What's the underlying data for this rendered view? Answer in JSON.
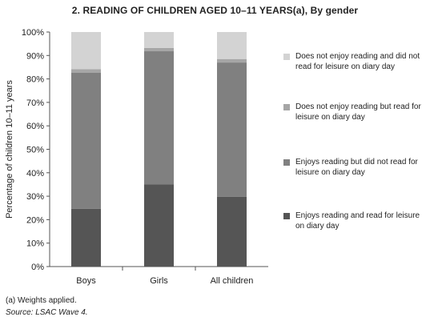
{
  "title": "2.   READING OF CHILDREN AGED 10–11 YEARS(a), By gender",
  "footnote": {
    "note": "(a) Weights applied.",
    "source": "Source: LSAC Wave 4."
  },
  "colors": {
    "series": [
      "#555555",
      "#808080",
      "#a6a6a6",
      "#d3d3d3"
    ],
    "axis": "#555555",
    "text": "#222222"
  },
  "chart_data": {
    "type": "bar",
    "stacked": true,
    "title": "2.   READING OF CHILDREN AGED 10–11 YEARS(a), By gender",
    "xlabel": "",
    "ylabel": "Percentage of children 10–11 years",
    "ylim": [
      0,
      100
    ],
    "yticks": [
      "0%",
      "10%",
      "20%",
      "30%",
      "40%",
      "50%",
      "60%",
      "70%",
      "80%",
      "90%",
      "100%"
    ],
    "categories": [
      "Boys",
      "Girls",
      "All children"
    ],
    "legend_position": "right",
    "grid": false,
    "series": [
      {
        "name": "Enjoys reading and read for leisure on diary day",
        "values": [
          24.6,
          35.1,
          29.8
        ]
      },
      {
        "name": "Enjoys reading but did not read for leisure on diary day",
        "values": [
          58.0,
          56.7,
          57.2
        ]
      },
      {
        "name": "Does not enjoy reading but read for leisure on diary day",
        "values": [
          1.6,
          1.4,
          1.5
        ]
      },
      {
        "name": "Does not enjoy reading and did not read for leisure on diary day",
        "values": [
          15.8,
          6.8,
          11.5
        ]
      }
    ]
  }
}
